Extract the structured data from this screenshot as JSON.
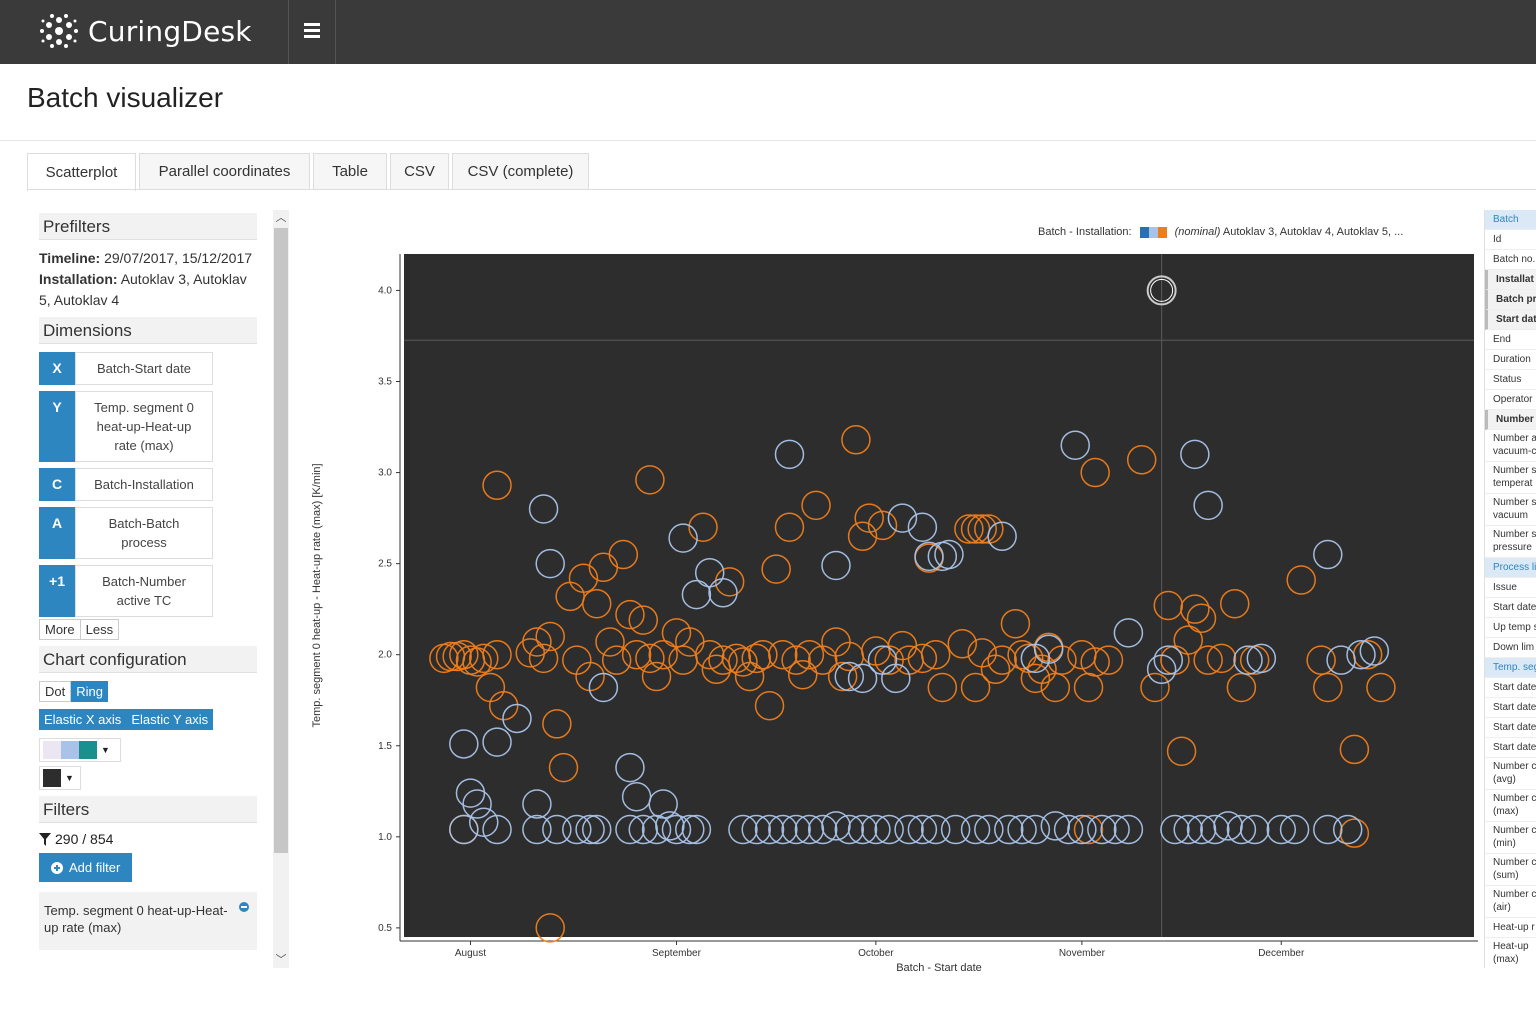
{
  "app": {
    "name": "CuringDesk"
  },
  "page": {
    "title": "Batch visualizer"
  },
  "tabs": [
    "Scatterplot",
    "Parallel coordinates",
    "Table",
    "CSV",
    "CSV (complete)"
  ],
  "sidebar": {
    "prefilters": {
      "heading": "Prefilters",
      "timeline_label": "Timeline:",
      "timeline_value": "29/07/2017, 15/12/2017",
      "installation_label": "Installation:",
      "installation_value": "Autoklav 3, Autoklav 5, Autoklav 4"
    },
    "dimensions": {
      "heading": "Dimensions",
      "items": [
        {
          "key": "X",
          "value": "Batch-Start date"
        },
        {
          "key": "Y",
          "value": "Temp. segment 0 heat-up-Heat-up rate (max)"
        },
        {
          "key": "C",
          "value": "Batch-Installation"
        },
        {
          "key": "A",
          "value": "Batch-Batch process"
        },
        {
          "key": "+1",
          "value": "Batch-Number active TC"
        }
      ],
      "more": "More",
      "less": "Less"
    },
    "chart_config": {
      "heading": "Chart configuration",
      "dot": "Dot",
      "ring": "Ring",
      "elastic_x": "Elastic X axis",
      "elastic_y": "Elastic Y axis"
    },
    "filters": {
      "heading": "Filters",
      "count": "290 / 854",
      "add_filter": "Add filter",
      "active_filter": "Temp. segment 0 heat-up-Heat-up rate (max)"
    }
  },
  "legend": {
    "label": "Batch - Installation:",
    "nominal": "(nominal)",
    "values": "Autoklav 3, Autoklav 4, Autoklav 5, ...",
    "colors": [
      "#2a6fb5",
      "#a9c3e8",
      "#f07d1a"
    ]
  },
  "right_panel": {
    "rows": [
      {
        "text": "Batch",
        "kind": "head"
      },
      {
        "text": "Id",
        "kind": ""
      },
      {
        "text": "Batch no.",
        "kind": ""
      },
      {
        "text": "Installat",
        "kind": "bold"
      },
      {
        "text": "Batch pr",
        "kind": "bold"
      },
      {
        "text": "Start dat",
        "kind": "bold"
      },
      {
        "text": "End",
        "kind": ""
      },
      {
        "text": "Duration",
        "kind": ""
      },
      {
        "text": "Status",
        "kind": ""
      },
      {
        "text": "Operator",
        "kind": ""
      },
      {
        "text": "Number",
        "kind": "bold"
      },
      {
        "text": "Number a vacuum-c",
        "kind": "two"
      },
      {
        "text": "Number s temperat",
        "kind": "two"
      },
      {
        "text": "Number s vacuum",
        "kind": "two"
      },
      {
        "text": "Number s pressure",
        "kind": "two"
      },
      {
        "text": "Process li",
        "kind": "head"
      },
      {
        "text": "Issue",
        "kind": ""
      },
      {
        "text": "Start date",
        "kind": ""
      },
      {
        "text": "Up temp s",
        "kind": ""
      },
      {
        "text": "Down lim",
        "kind": ""
      },
      {
        "text": "Temp. seg",
        "kind": "head"
      },
      {
        "text": "Start date",
        "kind": ""
      },
      {
        "text": "Start date",
        "kind": ""
      },
      {
        "text": "Start date",
        "kind": ""
      },
      {
        "text": "Start date",
        "kind": ""
      },
      {
        "text": "Number c (avg)",
        "kind": "two"
      },
      {
        "text": "Number c (max)",
        "kind": "two"
      },
      {
        "text": "Number c (min)",
        "kind": "two"
      },
      {
        "text": "Number c (sum)",
        "kind": "two"
      },
      {
        "text": "Number c (air)",
        "kind": "two"
      },
      {
        "text": "Heat-up r",
        "kind": ""
      },
      {
        "text": "Heat-up (max)",
        "kind": "two"
      }
    ]
  },
  "chart_data": {
    "type": "scatter",
    "xlabel": "Batch - Start date",
    "ylabel": "Temp. segment 0 heat-up - Heat-up rate (max) [K/min]",
    "xlim": [
      "2017-07-22",
      "2017-12-30"
    ],
    "ylim": [
      0.45,
      4.2
    ],
    "x_ticks": [
      {
        "label": "August",
        "date": "2017-08-01"
      },
      {
        "label": "September",
        "date": "2017-09-01"
      },
      {
        "label": "October",
        "date": "2017-10-01"
      },
      {
        "label": "November",
        "date": "2017-11-01"
      },
      {
        "label": "December",
        "date": "2017-12-01"
      }
    ],
    "y_ticks": [
      0.5,
      1.0,
      1.5,
      2.0,
      2.5,
      3.0,
      3.5,
      4.0
    ],
    "highlight": {
      "date": "2017-11-13",
      "value": 3.88
    },
    "colors": {
      "Autoklav 3": "#f07d1a",
      "Autoklav 4": "#a9c3e8",
      "Autoklav 5": "#a9c3e8",
      "background": "#2d2d2d"
    },
    "series": [
      {
        "name": "Autoklav 3",
        "points": [
          [
            "2017-07-28",
            1.98
          ],
          [
            "2017-07-29",
            1.99
          ],
          [
            "2017-07-30",
            1.99
          ],
          [
            "2017-07-31",
            2.0
          ],
          [
            "2017-08-01",
            1.97
          ],
          [
            "2017-08-02",
            1.96
          ],
          [
            "2017-08-03",
            1.98
          ],
          [
            "2017-08-04",
            1.82
          ],
          [
            "2017-08-05",
            2.0
          ],
          [
            "2017-08-06",
            1.72
          ],
          [
            "2017-08-05",
            2.93
          ],
          [
            "2017-08-10",
            2.01
          ],
          [
            "2017-08-11",
            2.07
          ],
          [
            "2017-08-12",
            1.98
          ],
          [
            "2017-08-13",
            2.1
          ],
          [
            "2017-08-14",
            1.62
          ],
          [
            "2017-08-15",
            1.38
          ],
          [
            "2017-08-16",
            2.32
          ],
          [
            "2017-08-17",
            1.97
          ],
          [
            "2017-08-18",
            2.42
          ],
          [
            "2017-08-19",
            1.88
          ],
          [
            "2017-08-20",
            2.28
          ],
          [
            "2017-08-21",
            2.48
          ],
          [
            "2017-08-22",
            2.07
          ],
          [
            "2017-08-23",
            1.97
          ],
          [
            "2017-08-24",
            2.55
          ],
          [
            "2017-08-25",
            2.22
          ],
          [
            "2017-08-26",
            2.0
          ],
          [
            "2017-08-27",
            2.19
          ],
          [
            "2017-08-28",
            1.98
          ],
          [
            "2017-08-28",
            2.96
          ],
          [
            "2017-08-29",
            1.88
          ],
          [
            "2017-08-30",
            2.0
          ],
          [
            "2017-09-01",
            2.12
          ],
          [
            "2017-09-02",
            1.97
          ],
          [
            "2017-09-03",
            2.07
          ],
          [
            "2017-09-05",
            2.7
          ],
          [
            "2017-09-06",
            2.0
          ],
          [
            "2017-09-07",
            1.92
          ],
          [
            "2017-09-08",
            1.97
          ],
          [
            "2017-09-09",
            2.4
          ],
          [
            "2017-09-10",
            1.98
          ],
          [
            "2017-09-11",
            1.96
          ],
          [
            "2017-09-12",
            1.88
          ],
          [
            "2017-09-13",
            1.98
          ],
          [
            "2017-09-14",
            2.0
          ],
          [
            "2017-09-15",
            1.72
          ],
          [
            "2017-09-16",
            2.47
          ],
          [
            "2017-09-17",
            2.0
          ],
          [
            "2017-09-18",
            2.7
          ],
          [
            "2017-09-19",
            1.97
          ],
          [
            "2017-09-20",
            1.89
          ],
          [
            "2017-09-21",
            2.0
          ],
          [
            "2017-09-22",
            2.82
          ],
          [
            "2017-09-23",
            1.97
          ],
          [
            "2017-09-25",
            2.07
          ],
          [
            "2017-09-26",
            1.88
          ],
          [
            "2017-09-27",
            1.99
          ],
          [
            "2017-09-28",
            3.18
          ],
          [
            "2017-09-29",
            2.65
          ],
          [
            "2017-09-30",
            2.75
          ],
          [
            "2017-10-01",
            2.02
          ],
          [
            "2017-10-02",
            2.71
          ],
          [
            "2017-10-03",
            1.97
          ],
          [
            "2017-10-05",
            2.05
          ],
          [
            "2017-10-06",
            1.97
          ],
          [
            "2017-10-08",
            1.98
          ],
          [
            "2017-10-09",
            2.53
          ],
          [
            "2017-10-10",
            2.0
          ],
          [
            "2017-10-11",
            1.82
          ],
          [
            "2017-10-14",
            2.06
          ],
          [
            "2017-10-15",
            2.69
          ],
          [
            "2017-10-16",
            2.69
          ],
          [
            "2017-10-17",
            2.69
          ],
          [
            "2017-10-18",
            2.69
          ],
          [
            "2017-10-16",
            1.82
          ],
          [
            "2017-10-17",
            2.01
          ],
          [
            "2017-10-19",
            1.92
          ],
          [
            "2017-10-20",
            1.97
          ],
          [
            "2017-10-22",
            2.17
          ],
          [
            "2017-10-23",
            2.0
          ],
          [
            "2017-10-24",
            1.98
          ],
          [
            "2017-10-25",
            1.87
          ],
          [
            "2017-10-26",
            1.92
          ],
          [
            "2017-10-27",
            2.04
          ],
          [
            "2017-10-28",
            1.82
          ],
          [
            "2017-10-29",
            1.97
          ],
          [
            "2017-11-01",
            2.0
          ],
          [
            "2017-11-02",
            1.82
          ],
          [
            "2017-11-03",
            3.0
          ],
          [
            "2017-11-03",
            1.96
          ],
          [
            "2017-11-05",
            1.97
          ],
          [
            "2017-11-10",
            3.07
          ],
          [
            "2017-11-12",
            1.82
          ],
          [
            "2017-11-14",
            2.27
          ],
          [
            "2017-11-15",
            1.97
          ],
          [
            "2017-11-16",
            1.47
          ],
          [
            "2017-11-17",
            2.08
          ],
          [
            "2017-11-18",
            2.25
          ],
          [
            "2017-11-19",
            2.2
          ],
          [
            "2017-11-20",
            1.97
          ],
          [
            "2017-11-22",
            1.98
          ],
          [
            "2017-11-24",
            2.28
          ],
          [
            "2017-11-25",
            1.82
          ],
          [
            "2017-11-27",
            1.97
          ],
          [
            "2017-12-04",
            2.41
          ],
          [
            "2017-12-07",
            1.97
          ],
          [
            "2017-12-08",
            1.82
          ],
          [
            "2017-12-12",
            1.48
          ],
          [
            "2017-12-14",
            2.0
          ],
          [
            "2017-12-16",
            1.82
          ],
          [
            "2017-07-31",
            1.04
          ],
          [
            "2017-11-02",
            1.04
          ],
          [
            "2017-12-12",
            1.02
          ],
          [
            "2017-08-13",
            0.5
          ]
        ]
      },
      {
        "name": "Autoklav 4",
        "points": [
          [
            "2017-07-31",
            1.51
          ],
          [
            "2017-08-01",
            1.24
          ],
          [
            "2017-08-02",
            1.18
          ],
          [
            "2017-08-03",
            1.08
          ],
          [
            "2017-07-31",
            1.04
          ],
          [
            "2017-08-05",
            1.04
          ],
          [
            "2017-08-08",
            1.65
          ],
          [
            "2017-08-05",
            1.52
          ],
          [
            "2017-08-11",
            1.18
          ],
          [
            "2017-08-11",
            1.04
          ],
          [
            "2017-08-12",
            2.8
          ],
          [
            "2017-08-13",
            2.5
          ],
          [
            "2017-08-14",
            1.04
          ],
          [
            "2017-08-17",
            1.04
          ],
          [
            "2017-08-19",
            1.04
          ],
          [
            "2017-08-20",
            1.04
          ],
          [
            "2017-08-21",
            1.82
          ],
          [
            "2017-08-25",
            1.38
          ],
          [
            "2017-08-25",
            1.04
          ],
          [
            "2017-08-27",
            1.04
          ],
          [
            "2017-08-29",
            1.04
          ],
          [
            "2017-08-31",
            1.06
          ],
          [
            "2017-09-01",
            1.04
          ],
          [
            "2017-09-03",
            1.04
          ],
          [
            "2017-09-04",
            1.04
          ],
          [
            "2017-08-26",
            1.22
          ],
          [
            "2017-08-30",
            1.18
          ],
          [
            "2017-09-02",
            2.64
          ],
          [
            "2017-09-04",
            2.33
          ],
          [
            "2017-09-06",
            2.45
          ],
          [
            "2017-09-08",
            2.34
          ],
          [
            "2017-09-11",
            1.04
          ],
          [
            "2017-09-13",
            1.04
          ],
          [
            "2017-09-15",
            1.04
          ],
          [
            "2017-09-17",
            1.04
          ],
          [
            "2017-09-18",
            3.1
          ],
          [
            "2017-09-19",
            1.04
          ],
          [
            "2017-09-21",
            1.04
          ],
          [
            "2017-09-23",
            1.04
          ],
          [
            "2017-09-25",
            1.06
          ],
          [
            "2017-09-27",
            1.04
          ],
          [
            "2017-09-29",
            1.04
          ],
          [
            "2017-10-01",
            1.04
          ],
          [
            "2017-10-03",
            1.04
          ],
          [
            "2017-10-06",
            1.04
          ],
          [
            "2017-10-08",
            1.04
          ],
          [
            "2017-10-10",
            1.04
          ],
          [
            "2017-10-13",
            1.04
          ],
          [
            "2017-10-16",
            1.04
          ],
          [
            "2017-10-18",
            1.04
          ],
          [
            "2017-10-21",
            1.04
          ],
          [
            "2017-10-23",
            1.04
          ],
          [
            "2017-10-25",
            1.04
          ],
          [
            "2017-10-28",
            1.06
          ],
          [
            "2017-10-30",
            1.04
          ],
          [
            "2017-11-01",
            1.04
          ],
          [
            "2017-11-04",
            1.04
          ],
          [
            "2017-11-06",
            1.04
          ],
          [
            "2017-11-08",
            1.04
          ],
          [
            "2017-11-15",
            1.04
          ],
          [
            "2017-11-17",
            1.04
          ],
          [
            "2017-11-19",
            1.04
          ],
          [
            "2017-11-21",
            1.04
          ],
          [
            "2017-11-23",
            1.06
          ],
          [
            "2017-11-25",
            1.04
          ],
          [
            "2017-11-27",
            1.04
          ],
          [
            "2017-12-01",
            1.04
          ],
          [
            "2017-12-03",
            1.04
          ],
          [
            "2017-12-08",
            1.04
          ],
          [
            "2017-12-11",
            1.04
          ],
          [
            "2017-10-05",
            2.75
          ],
          [
            "2017-10-08",
            2.7
          ],
          [
            "2017-10-09",
            2.54
          ],
          [
            "2017-10-11",
            2.54
          ],
          [
            "2017-10-12",
            2.55
          ],
          [
            "2017-09-25",
            2.49
          ],
          [
            "2017-09-27",
            1.88
          ],
          [
            "2017-09-29",
            1.87
          ],
          [
            "2017-10-02",
            1.97
          ],
          [
            "2017-10-04",
            1.87
          ],
          [
            "2017-10-25",
            1.98
          ],
          [
            "2017-10-27",
            2.03
          ],
          [
            "2017-10-20",
            2.65
          ],
          [
            "2017-10-31",
            3.15
          ],
          [
            "2017-11-18",
            3.1
          ],
          [
            "2017-11-20",
            2.82
          ],
          [
            "2017-11-14",
            1.97
          ],
          [
            "2017-11-13",
            1.92
          ],
          [
            "2017-11-08",
            2.12
          ],
          [
            "2017-11-26",
            1.97
          ],
          [
            "2017-11-28",
            1.98
          ],
          [
            "2017-12-08",
            2.55
          ],
          [
            "2017-12-10",
            1.97
          ],
          [
            "2017-12-13",
            2.0
          ],
          [
            "2017-12-15",
            2.02
          ]
        ]
      }
    ]
  }
}
